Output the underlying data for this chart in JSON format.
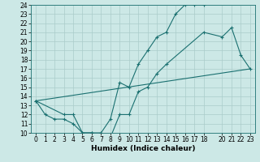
{
  "title": "",
  "xlabel": "Humidex (Indice chaleur)",
  "ylabel": "",
  "xlim": [
    -0.5,
    23.5
  ],
  "ylim": [
    10,
    24
  ],
  "xticks": [
    0,
    1,
    2,
    3,
    4,
    5,
    6,
    7,
    8,
    9,
    10,
    11,
    12,
    13,
    14,
    15,
    16,
    17,
    18,
    20,
    21,
    22,
    23
  ],
  "yticks": [
    10,
    11,
    12,
    13,
    14,
    15,
    16,
    17,
    18,
    19,
    20,
    21,
    22,
    23,
    24
  ],
  "bg_color": "#cce8e6",
  "grid_color": "#aaccca",
  "line_color": "#1a7070",
  "line1_x": [
    0,
    1,
    2,
    3,
    4,
    5,
    6,
    7,
    8,
    9,
    10,
    11,
    12,
    13,
    14,
    15,
    16,
    17,
    18
  ],
  "line1_y": [
    13.5,
    12.0,
    11.5,
    11.5,
    11.0,
    10.0,
    10.0,
    10.0,
    11.5,
    15.5,
    15.0,
    17.5,
    19.0,
    20.5,
    21.0,
    23.0,
    24.0,
    24.0,
    24.0
  ],
  "line2_x": [
    0,
    3,
    4,
    5,
    6,
    7,
    8,
    9,
    10,
    11,
    12,
    13,
    14,
    18,
    20,
    21,
    22,
    23
  ],
  "line2_y": [
    13.5,
    12.0,
    12.0,
    10.0,
    10.0,
    9.5,
    9.5,
    12.0,
    12.0,
    14.5,
    15.0,
    16.5,
    17.5,
    21.0,
    20.5,
    21.5,
    18.5,
    17.0
  ],
  "line3_x": [
    0,
    23
  ],
  "line3_y": [
    13.5,
    17.0
  ],
  "tick_fontsize": 5.5,
  "xlabel_fontsize": 6.5
}
